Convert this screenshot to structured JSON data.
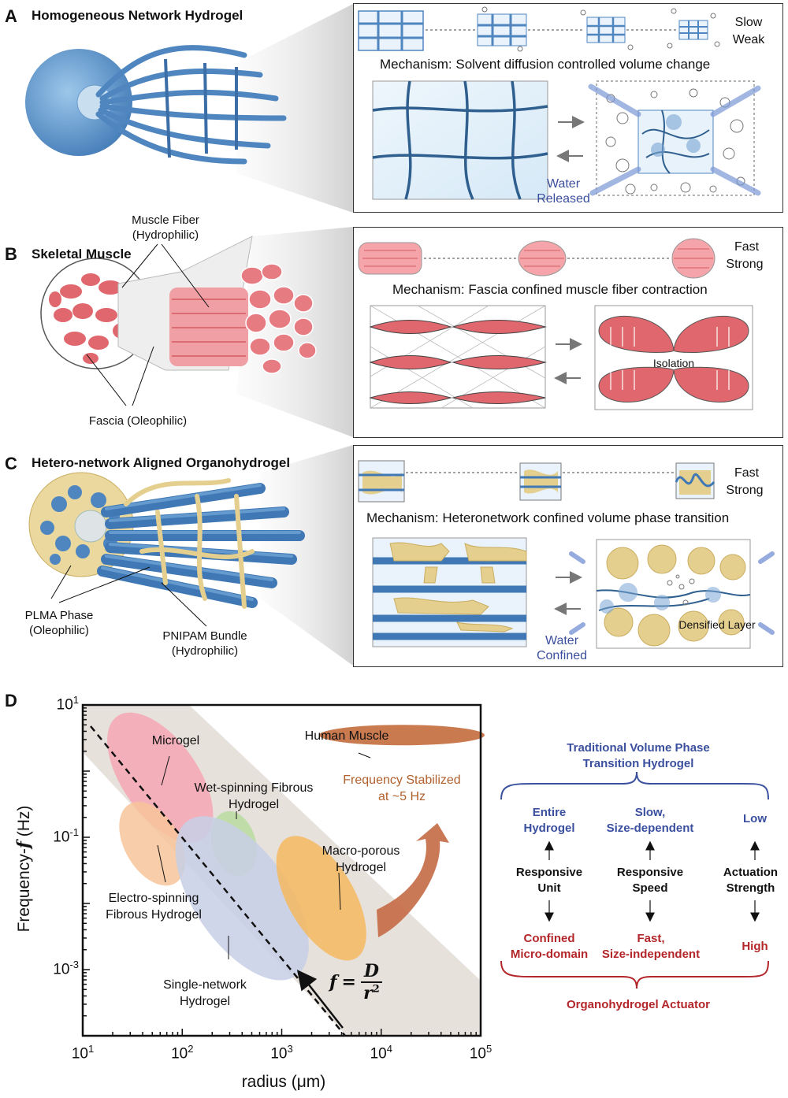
{
  "panels": {
    "A": {
      "letter": "A",
      "title": "Homogeneous Network Hydrogel",
      "speed": "Slow",
      "strength": "Weak",
      "mechanism": "Mechanism: Solvent diffusion controlled volume change",
      "water_line1": "Water",
      "water_line2": "Released"
    },
    "B": {
      "letter": "B",
      "title": "Skeletal Muscle",
      "speed": "Fast",
      "strength": "Strong",
      "mechanism": "Mechanism: Fascia confined muscle fiber contraction",
      "muscle_fiber_line1": "Muscle Fiber",
      "muscle_fiber_line2": "(Hydrophilic)",
      "fascia": "Fascia (Oleophilic)",
      "isolation": "Isolation"
    },
    "C": {
      "letter": "C",
      "title": "Hetero-network Aligned Organohydrogel",
      "speed": "Fast",
      "strength": "Strong",
      "mechanism": "Mechanism: Heteronetwork confined volume phase transition",
      "plma_line1": "PLMA Phase",
      "plma_line2": "(Oleophilic)",
      "pnipam_line1": "PNIPAM Bundle",
      "pnipam_line2": "(Hydrophilic)",
      "water_line1": "Water",
      "water_line2": "Confined",
      "densified": "Densified Layer"
    },
    "D": {
      "letter": "D"
    }
  },
  "chart_data": {
    "type": "scatter",
    "xlabel": "radius (μm)",
    "ylabel_prefix": "Frequency-",
    "ylabel_var": "f",
    "ylabel_unit": " (Hz)",
    "x_scale": "log",
    "y_scale": "log",
    "xlim": [
      10,
      100000
    ],
    "ylim": [
      0.0001,
      10
    ],
    "x_ticks": [
      {
        "base": "10",
        "exp": "1"
      },
      {
        "base": "10",
        "exp": "2"
      },
      {
        "base": "10",
        "exp": "3"
      },
      {
        "base": "10",
        "exp": "4"
      },
      {
        "base": "10",
        "exp": "5"
      }
    ],
    "y_ticks": [
      {
        "base": "10",
        "exp": "1"
      },
      {
        "base": "10",
        "exp": "-1"
      },
      {
        "base": "10",
        "exp": "-3"
      }
    ],
    "formula": {
      "lhs": "f",
      "num": "D",
      "den": "r",
      "den_exp": "2"
    },
    "regions": [
      {
        "name": "Microgel",
        "color": "#f4a7b4"
      },
      {
        "name_line1": "Electro-spinning",
        "name_line2": "Fibrous Hydrogel",
        "color": "#f7c49a"
      },
      {
        "name_line1": "Wet-spinning Fibrous",
        "name_line2": "Hydrogel",
        "color": "#b8dca0"
      },
      {
        "name_line1": "Single-network",
        "name_line2": "Hydrogel",
        "color": "#c7cfe6"
      },
      {
        "name_line1": "Macro-porous",
        "name_line2": "Hydrogel",
        "color": "#f5b860"
      },
      {
        "name": "Human Muscle",
        "color": "#c97a4f"
      }
    ],
    "stabilized_line1": "Frequency Stabilized",
    "stabilized_line2": "at ~5 Hz"
  },
  "comparison": {
    "top_title_line1": "Traditional Volume Phase",
    "top_title_line2": "Transition Hydrogel",
    "bottom_title": "Organohydrogel Actuator",
    "columns": [
      {
        "top_line1": "Entire",
        "top_line2": "Hydrogel",
        "mid_line1": "Responsive",
        "mid_line2": "Unit",
        "bottom_line1": "Confined",
        "bottom_line2": "Micro-domain"
      },
      {
        "top_line1": "Slow,",
        "top_line2": "Size-dependent",
        "mid_line1": "Responsive",
        "mid_line2": "Speed",
        "bottom_line1": "Fast,",
        "bottom_line2": "Size-independent"
      },
      {
        "top_line1": "Low",
        "top_line2": "",
        "mid_line1": "Actuation",
        "mid_line2": "Strength",
        "bottom_line1": "High",
        "bottom_line2": ""
      }
    ]
  },
  "colors": {
    "blue_fiber": "#4f86c0",
    "red_muscle": "#e0676d",
    "gold_plma": "#e5cf8f",
    "label_blue": "#3a4f9e",
    "label_red": "#b3262a"
  }
}
